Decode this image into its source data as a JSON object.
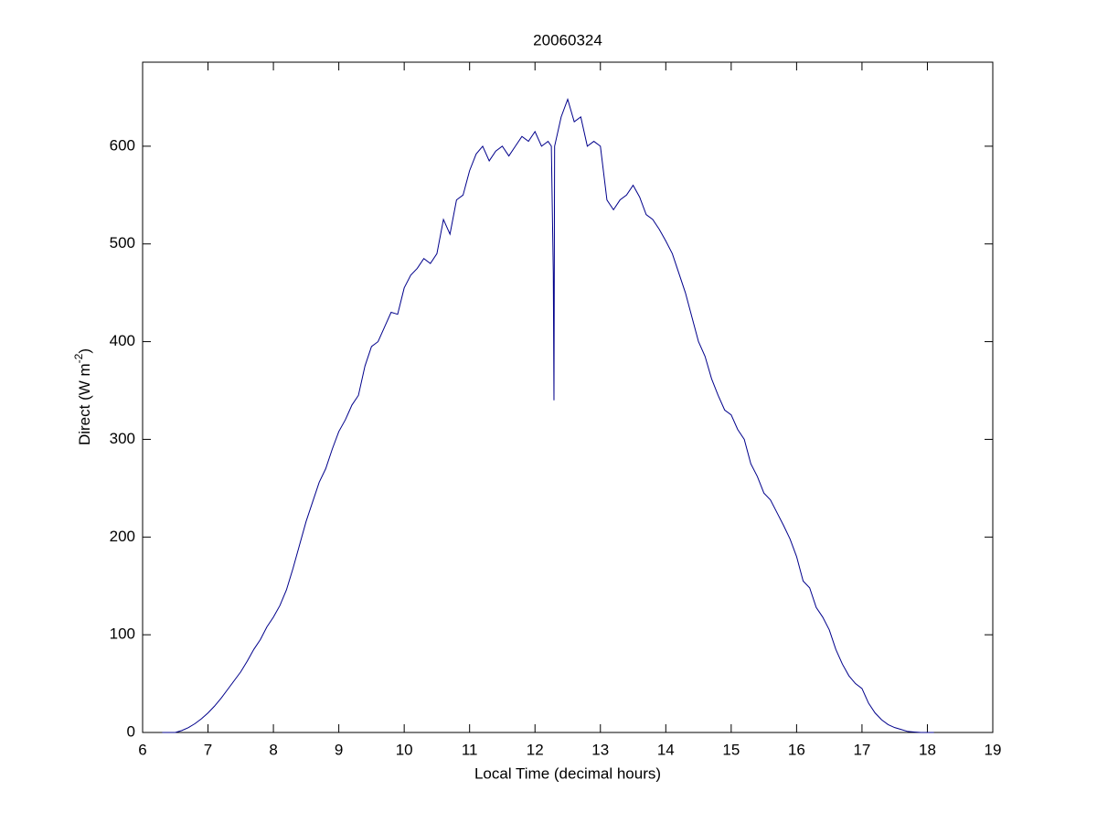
{
  "chart_data": {
    "type": "line",
    "title": "20060324",
    "x_label": "Local Time (decimal hours)",
    "y_label": {
      "text": "Direct (W m",
      "superscript": "-2",
      "suffix": ")"
    },
    "xlim": [
      6,
      19
    ],
    "ylim": [
      0,
      686
    ],
    "xticks": [
      6,
      7,
      8,
      9,
      10,
      11,
      12,
      13,
      14,
      15,
      16,
      17,
      18,
      19
    ],
    "yticks": [
      0,
      100,
      200,
      300,
      400,
      500,
      600
    ],
    "grid": false,
    "series": [
      {
        "color": "#00008b",
        "x": [
          6.3,
          6.5,
          6.6,
          6.7,
          6.8,
          6.9,
          7.0,
          7.1,
          7.2,
          7.3,
          7.4,
          7.5,
          7.6,
          7.7,
          7.8,
          7.9,
          8.0,
          8.1,
          8.2,
          8.3,
          8.4,
          8.5,
          8.6,
          8.7,
          8.8,
          8.9,
          9.0,
          9.1,
          9.2,
          9.3,
          9.4,
          9.5,
          9.6,
          9.7,
          9.8,
          9.9,
          10.0,
          10.1,
          10.2,
          10.3,
          10.4,
          10.5,
          10.6,
          10.7,
          10.8,
          10.9,
          11.0,
          11.1,
          11.2,
          11.3,
          11.4,
          11.5,
          11.6,
          11.7,
          11.8,
          11.9,
          12.0,
          12.1,
          12.2,
          12.25,
          12.28,
          12.29,
          12.3,
          12.4,
          12.5,
          12.6,
          12.7,
          12.8,
          12.9,
          13.0,
          13.1,
          13.2,
          13.3,
          13.4,
          13.5,
          13.6,
          13.7,
          13.8,
          13.9,
          14.0,
          14.1,
          14.2,
          14.3,
          14.4,
          14.5,
          14.6,
          14.7,
          14.8,
          14.9,
          15.0,
          15.1,
          15.2,
          15.3,
          15.4,
          15.5,
          15.6,
          15.7,
          15.8,
          15.9,
          16.0,
          16.1,
          16.2,
          16.3,
          16.4,
          16.5,
          16.6,
          16.7,
          16.8,
          16.9,
          17.0,
          17.1,
          17.2,
          17.3,
          17.4,
          17.5,
          17.6,
          17.7,
          17.8,
          17.9,
          18.1
        ],
        "values": [
          0,
          0,
          2,
          5,
          9,
          14,
          20,
          27,
          35,
          44,
          53,
          62,
          73,
          85,
          95,
          108,
          118,
          130,
          146,
          168,
          192,
          216,
          236,
          256,
          270,
          290,
          308,
          320,
          335,
          345,
          375,
          395,
          400,
          415,
          430,
          428,
          455,
          468,
          475,
          485,
          480,
          490,
          525,
          510,
          545,
          550,
          575,
          592,
          600,
          585,
          595,
          600,
          590,
          600,
          610,
          605,
          615,
          600,
          605,
          600,
          470,
          340,
          600,
          630,
          648,
          625,
          630,
          600,
          605,
          600,
          545,
          535,
          545,
          550,
          560,
          548,
          530,
          525,
          515,
          503,
          490,
          470,
          450,
          425,
          400,
          385,
          362,
          345,
          330,
          325,
          310,
          300,
          275,
          262,
          245,
          238,
          225,
          212,
          198,
          180,
          155,
          148,
          128,
          118,
          105,
          85,
          70,
          58,
          50,
          45,
          30,
          20,
          13,
          8,
          5,
          3,
          1,
          0.5,
          0,
          0
        ]
      }
    ]
  }
}
